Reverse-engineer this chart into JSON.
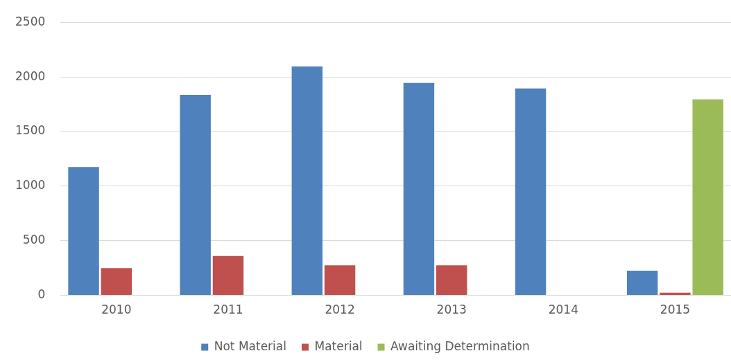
{
  "chart_data": {
    "type": "bar",
    "categories": [
      "2010",
      "2011",
      "2012",
      "2013",
      "2014",
      "2015"
    ],
    "series": [
      {
        "name": "Not Material",
        "color": "#4f81bd",
        "values": [
          1175,
          1835,
          2095,
          1945,
          1895,
          225
        ]
      },
      {
        "name": "Material",
        "color": "#c0504d",
        "values": [
          250,
          360,
          275,
          275,
          0,
          25
        ]
      },
      {
        "name": "Awaiting Determination",
        "color": "#9bbb59",
        "values": [
          0,
          0,
          0,
          0,
          0,
          1795
        ]
      }
    ],
    "ylim": [
      0,
      2500
    ],
    "yticks": [
      0,
      500,
      1000,
      1500,
      2000,
      2500
    ],
    "grid": "y",
    "legend": "bottom"
  }
}
